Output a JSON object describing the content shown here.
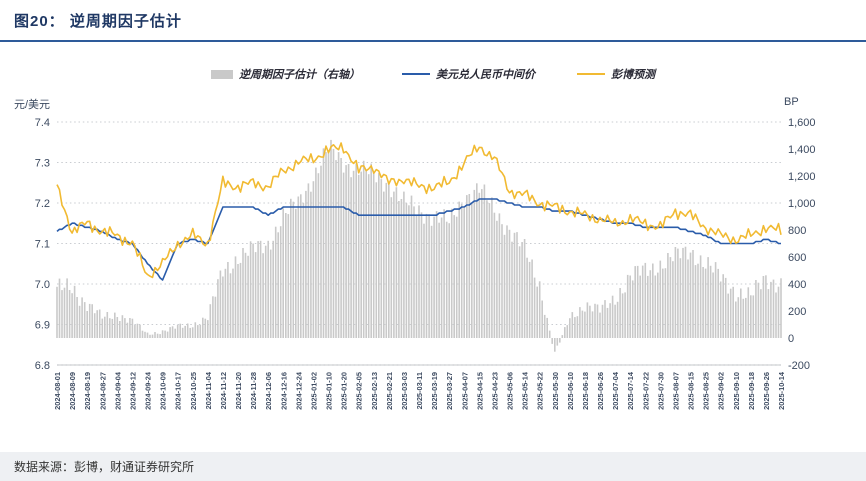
{
  "title": "图20：  逆周期因子估计",
  "footer": {
    "source": "数据来源：彭博，财通证券研究所"
  },
  "accent_color": "#2e5b9a",
  "chart_data": {
    "type": "mixed",
    "legend_position": "top",
    "grid": "dotted-horizontal",
    "categories": [
      "2024-08-01",
      "2024-08-09",
      "2024-08-19",
      "2024-08-27",
      "2024-09-04",
      "2024-09-12",
      "2024-09-24",
      "2024-10-09",
      "2024-10-17",
      "2024-10-25",
      "2024-11-04",
      "2024-11-12",
      "2024-11-20",
      "2024-11-28",
      "2024-12-06",
      "2024-12-16",
      "2024-12-24",
      "2025-01-02",
      "2025-01-10",
      "2025-01-20",
      "2025-02-05",
      "2025-02-13",
      "2025-02-21",
      "2025-03-03",
      "2025-03-11",
      "2025-03-19",
      "2025-03-27",
      "2025-04-07",
      "2025-04-15",
      "2025-04-23",
      "2025-05-06",
      "2025-05-14",
      "2025-05-22",
      "2025-05-30",
      "2025-06-10",
      "2025-06-18",
      "2025-06-26",
      "2025-07-04",
      "2025-07-14",
      "2025-07-22",
      "2025-07-30",
      "2025-08-07",
      "2025-08-15",
      "2025-08-25",
      "2025-09-02",
      "2025-09-10",
      "2025-09-18",
      "2025-09-26",
      "2025-10-14"
    ],
    "left_axis": {
      "label": "元/美元",
      "min": 6.8,
      "max": 7.4,
      "ticks": [
        7.4,
        7.3,
        7.2,
        7.1,
        7.0,
        6.9,
        6.8
      ]
    },
    "right_axis": {
      "label": "BP",
      "min": -200,
      "max": 1600,
      "ticks": [
        1600,
        1400,
        1200,
        1000,
        800,
        600,
        400,
        200,
        0,
        -200
      ]
    },
    "series": [
      {
        "name": "逆周期因子估计（右轴）",
        "type": "bar",
        "axis": "right",
        "color": "#c9c9c9",
        "values": [
          350,
          380,
          250,
          150,
          180,
          120,
          30,
          50,
          80,
          100,
          150,
          500,
          600,
          650,
          700,
          900,
          1000,
          1200,
          1400,
          1300,
          1250,
          1200,
          1150,
          1000,
          950,
          900,
          850,
          1050,
          1100,
          950,
          800,
          650,
          400,
          -120,
          150,
          250,
          200,
          300,
          450,
          500,
          550,
          600,
          650,
          550,
          450,
          350,
          300,
          450,
          400
        ]
      },
      {
        "name": "美元兑人民币中间价",
        "type": "line",
        "axis": "left",
        "color": "#2a5caa",
        "values": [
          7.13,
          7.15,
          7.14,
          7.13,
          7.11,
          7.1,
          7.05,
          7.01,
          7.1,
          7.11,
          7.1,
          7.19,
          7.19,
          7.19,
          7.17,
          7.19,
          7.19,
          7.19,
          7.19,
          7.19,
          7.17,
          7.17,
          7.17,
          7.17,
          7.17,
          7.17,
          7.18,
          7.19,
          7.21,
          7.21,
          7.2,
          7.19,
          7.19,
          7.18,
          7.18,
          7.17,
          7.16,
          7.15,
          7.15,
          7.14,
          7.14,
          7.14,
          7.13,
          7.12,
          7.1,
          7.1,
          7.1,
          7.11,
          7.1
        ]
      },
      {
        "name": "彭博预测",
        "type": "line",
        "axis": "left",
        "color": "#f1ba32",
        "values": [
          7.24,
          7.13,
          7.15,
          7.13,
          7.12,
          7.1,
          7.02,
          7.05,
          7.1,
          7.12,
          7.1,
          7.25,
          7.24,
          7.25,
          7.24,
          7.28,
          7.3,
          7.31,
          7.33,
          7.34,
          7.28,
          7.29,
          7.25,
          7.26,
          7.24,
          7.24,
          7.25,
          7.3,
          7.34,
          7.31,
          7.23,
          7.22,
          7.2,
          7.19,
          7.18,
          7.17,
          7.16,
          7.15,
          7.16,
          7.15,
          7.14,
          7.18,
          7.17,
          7.14,
          7.12,
          7.11,
          7.12,
          7.14,
          7.13
        ]
      }
    ]
  }
}
